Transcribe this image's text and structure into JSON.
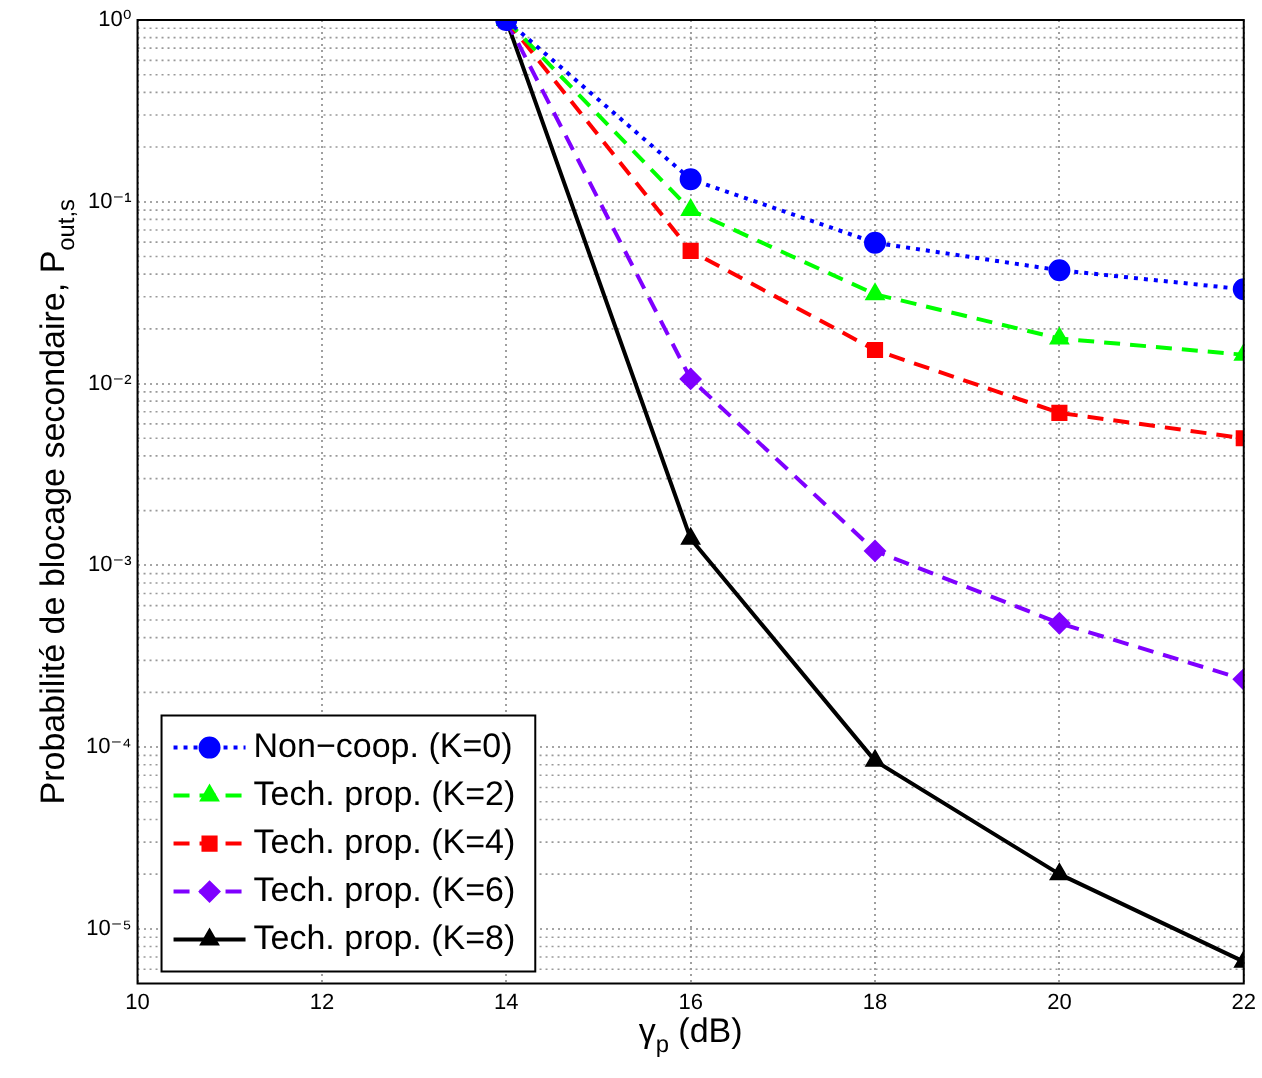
{
  "chart_data": {
    "type": "line",
    "xlabel": "γ$_{p}$ (dB)",
    "ylabel": "Probabilité de blocage secondaire, P$_{out,s}$",
    "x": [
      14,
      16,
      18,
      20,
      22
    ],
    "series": [
      {
        "name": "Non−coop. (K=0)",
        "color": "#0000ff",
        "marker": "circle",
        "line_style": "dotted",
        "values": [
          1,
          0.133,
          0.0595,
          0.042,
          0.033
        ]
      },
      {
        "name": "Tech. prop. (K=2)",
        "color": "#00ff00",
        "marker": "triangle",
        "line_style": "dashed",
        "values": [
          1,
          0.09,
          0.031,
          0.0177,
          0.0144
        ]
      },
      {
        "name": "Tech. prop. (K=4)",
        "color": "#ff0000",
        "marker": "square",
        "line_style": "dashed",
        "values": [
          1,
          0.0537,
          0.0153,
          0.0069,
          0.005
        ]
      },
      {
        "name": "Tech. prop. (K=6)",
        "color": "#7f00ff",
        "marker": "diamond",
        "line_style": "dashed",
        "values": [
          1,
          0.0106,
          0.0012,
          0.00048,
          0.000236
        ]
      },
      {
        "name": "Tech. prop. (K=8)",
        "color": "#000000",
        "marker": "triangle",
        "line_style": "solid",
        "values": [
          1,
          0.0014,
          8.4e-05,
          2e-05,
          6.6e-06
        ]
      }
    ],
    "log": "y",
    "xlim": [
      10,
      22
    ],
    "xticks": [
      10,
      12,
      14,
      16,
      18,
      20,
      22
    ],
    "ylim": [
      5e-06,
      1
    ],
    "yticks": [
      {
        "value": 1e-05,
        "label": "10⁻⁵"
      },
      {
        "value": 0.0001,
        "label": "10⁻⁴"
      },
      {
        "value": 0.001,
        "label": "10⁻³"
      },
      {
        "value": 0.01,
        "label": "10⁻²"
      },
      {
        "value": 0.1,
        "label": "10⁻¹"
      },
      {
        "value": 1,
        "label": "10⁰"
      }
    ],
    "grid": true,
    "legend": "bottom left"
  }
}
